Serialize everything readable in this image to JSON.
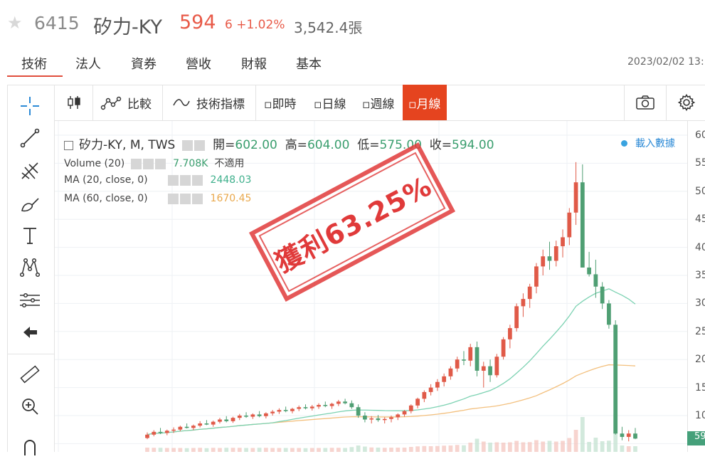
{
  "header": {
    "code": "6415",
    "name": "矽力-KY",
    "price": "594",
    "change": "6 +1.02%",
    "volume": "3,542.4張"
  },
  "tabs": [
    "技術",
    "法人",
    "資券",
    "營收",
    "財報",
    "基本"
  ],
  "datetime": "2023/02/02 13:",
  "toolbar": {
    "compare_label": "比較",
    "indicators_label": "技術指標",
    "periods": [
      "▫即時",
      "▫日線",
      "▫週線",
      "▫月線"
    ],
    "active_period": "▫月線"
  },
  "legend": {
    "symbol": "矽力-KY, M, TWS",
    "open_label": "開=",
    "open": "602.00",
    "high_label": "高=",
    "high": "604.00",
    "low_label": "低=",
    "low": "575.00",
    "close_label": "收=",
    "close": "594.00",
    "volume_name": "Volume (20)",
    "volume_value": "7.708K",
    "volume_extra": "不適用",
    "ma20_name": "MA (20, close, 0)",
    "ma20_value": "2448.03",
    "ma60_name": "MA (60, close, 0)",
    "ma60_value": "1670.45",
    "download_label": "載入數據"
  },
  "stamp_text": "獲利63.25%",
  "y_axis_ticks": [
    "60",
    "55",
    "50",
    "45",
    "40",
    "35",
    "30",
    "25",
    "20",
    "15",
    "10"
  ],
  "price_label": "59",
  "colors": {
    "up": "#e05a48",
    "down": "#4f9f73",
    "ma20": "#7cd2b2",
    "ma60": "#f3c07e",
    "active_tab": "#e5441f",
    "stamp": "#e03a3a"
  },
  "chart_data": {
    "type": "candlestick",
    "ohlc": [
      [
        60,
        70,
        58,
        66
      ],
      [
        66,
        74,
        63,
        71
      ],
      [
        71,
        78,
        67,
        69
      ],
      [
        69,
        75,
        65,
        73
      ],
      [
        73,
        79,
        69,
        75
      ],
      [
        75,
        82,
        72,
        80
      ],
      [
        80,
        86,
        77,
        78
      ],
      [
        78,
        84,
        74,
        82
      ],
      [
        82,
        90,
        79,
        86
      ],
      [
        86,
        92,
        83,
        84
      ],
      [
        84,
        91,
        80,
        89
      ],
      [
        89,
        96,
        86,
        93
      ],
      [
        93,
        99,
        88,
        90
      ],
      [
        90,
        98,
        87,
        96
      ],
      [
        96,
        103,
        92,
        100
      ],
      [
        100,
        106,
        96,
        98
      ],
      [
        98,
        104,
        94,
        102
      ],
      [
        102,
        108,
        97,
        99
      ],
      [
        99,
        106,
        95,
        104
      ],
      [
        104,
        110,
        100,
        107
      ],
      [
        107,
        113,
        103,
        110
      ],
      [
        110,
        116,
        106,
        108
      ],
      [
        108,
        114,
        104,
        112
      ],
      [
        112,
        118,
        108,
        115
      ],
      [
        115,
        120,
        111,
        113
      ],
      [
        113,
        119,
        109,
        116
      ],
      [
        116,
        122,
        112,
        119
      ],
      [
        119,
        125,
        115,
        117
      ],
      [
        117,
        123,
        112,
        121
      ],
      [
        121,
        128,
        117,
        125
      ],
      [
        125,
        130,
        120,
        122
      ],
      [
        122,
        127,
        112,
        115
      ],
      [
        115,
        120,
        96,
        100
      ],
      [
        100,
        106,
        88,
        93
      ],
      [
        93,
        99,
        86,
        95
      ],
      [
        95,
        101,
        89,
        92
      ],
      [
        92,
        97,
        86,
        94
      ],
      [
        94,
        100,
        88,
        97
      ],
      [
        97,
        104,
        92,
        102
      ],
      [
        102,
        110,
        98,
        108
      ],
      [
        108,
        120,
        104,
        118
      ],
      [
        118,
        132,
        113,
        130
      ],
      [
        130,
        145,
        124,
        142
      ],
      [
        142,
        156,
        136,
        150
      ],
      [
        150,
        165,
        144,
        160
      ],
      [
        160,
        175,
        152,
        170
      ],
      [
        170,
        188,
        164,
        184
      ],
      [
        184,
        205,
        178,
        200
      ],
      [
        200,
        215,
        190,
        198
      ],
      [
        198,
        228,
        188,
        222
      ],
      [
        222,
        232,
        170,
        180
      ],
      [
        180,
        196,
        150,
        188
      ],
      [
        188,
        200,
        160,
        172
      ],
      [
        172,
        210,
        168,
        205
      ],
      [
        205,
        240,
        200,
        236
      ],
      [
        236,
        262,
        220,
        256
      ],
      [
        256,
        300,
        250,
        295
      ],
      [
        295,
        318,
        276,
        308
      ],
      [
        308,
        335,
        292,
        330
      ],
      [
        330,
        372,
        318,
        366
      ],
      [
        366,
        396,
        350,
        384
      ],
      [
        384,
        410,
        360,
        376
      ],
      [
        376,
        412,
        366,
        402
      ],
      [
        402,
        432,
        382,
        418
      ],
      [
        418,
        470,
        404,
        462
      ],
      [
        462,
        552,
        440,
        516
      ],
      [
        516,
        548,
        364,
        364
      ],
      [
        364,
        392,
        348,
        352
      ],
      [
        352,
        378,
        310,
        330
      ],
      [
        330,
        338,
        290,
        300
      ],
      [
        300,
        306,
        255,
        262
      ],
      [
        262,
        270,
        66,
        68
      ],
      [
        68,
        80,
        56,
        62
      ],
      [
        62,
        74,
        54,
        68
      ],
      [
        68,
        78,
        58,
        59
      ]
    ],
    "ma20": [],
    "ma60": [],
    "y_ticks": [
      "60",
      "55",
      "50",
      "45",
      "40",
      "35",
      "30",
      "25",
      "20",
      "15",
      "10"
    ]
  }
}
